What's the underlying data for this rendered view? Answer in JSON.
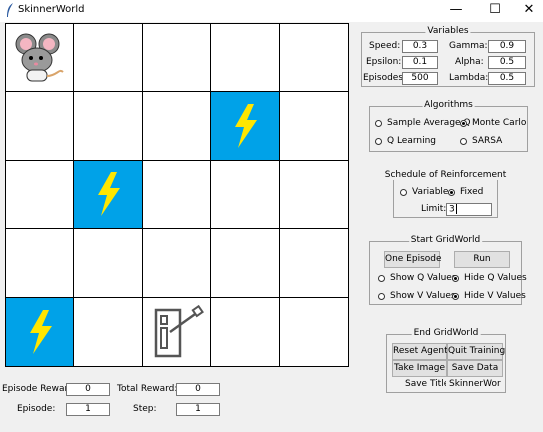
{
  "window": {
    "title": "SkinnerWorld",
    "minimize": "—",
    "maximize": "☐",
    "close": "✕"
  },
  "grid": {
    "cells": [
      [
        "mouse",
        "empty",
        "empty",
        "empty",
        "empty"
      ],
      [
        "empty",
        "empty",
        "empty",
        "shock",
        "empty"
      ],
      [
        "empty",
        "shock",
        "empty",
        "empty",
        "empty"
      ],
      [
        "empty",
        "empty",
        "empty",
        "empty",
        "empty"
      ],
      [
        "shock",
        "empty",
        "lever",
        "empty",
        "empty"
      ]
    ],
    "colors": {
      "shock": "#00a2e8",
      "bolt": "#ffe600",
      "grid_line": "#000000"
    }
  },
  "variables": {
    "legend": "Variables",
    "speed_label": "Speed:",
    "speed": "0.3",
    "gamma_label": "Gamma:",
    "gamma": "0.9",
    "epsilon_label": "Epsilon:",
    "epsilon": "0.1",
    "alpha_label": "Alpha:",
    "alpha": "0.5",
    "episodes_label": "Episodes:",
    "episodes": "500",
    "lambda_label": "Lambda:",
    "lambda": "0.5"
  },
  "algorithms": {
    "legend": "Algorithms",
    "options": [
      "Sample Average Q",
      "Monte Carlo",
      "Q Learning",
      "SARSA"
    ],
    "selected": "Monte Carlo"
  },
  "schedule": {
    "legend": "Schedule of Reinforcement",
    "options": [
      "Variable",
      "Fixed"
    ],
    "selected": "Fixed",
    "limit_label": "Limit:",
    "limit": "3"
  },
  "start": {
    "legend": "Start GridWorld",
    "one_episode": "One Episode",
    "run": "Run",
    "show_q": "Show Q Values",
    "hide_q": "Hide Q Values",
    "show_v": "Show V Values",
    "hide_v": "Hide V Values",
    "q_selected": "Hide Q Values",
    "v_selected": "Hide V Values"
  },
  "end": {
    "legend": "End GridWorld",
    "reset_agent": "Reset Agent",
    "quit_training": "Quit Training",
    "take_image": "Take Image",
    "save_data": "Save Data",
    "save_title_label": "Save Title:",
    "save_title": "SkinnerWor"
  },
  "stats": {
    "episode_reward_label": "Episode Reward:",
    "episode_reward": "0",
    "total_reward_label": "Total Reward:",
    "total_reward": "0",
    "episode_label": "Episode:",
    "episode": "1",
    "step_label": "Step:",
    "step": "1"
  }
}
